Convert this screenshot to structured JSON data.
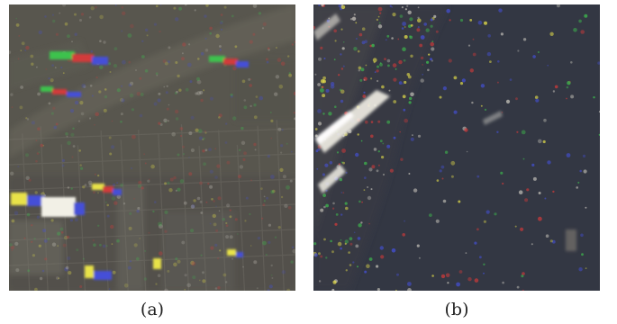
{
  "panels": [
    {
      "id": "a",
      "caption": "(a)",
      "scene": "urban-aerial",
      "background_color": "#58564e"
    },
    {
      "id": "b",
      "caption": "(b)",
      "scene": "dark-water-coast",
      "background_color": "#333743"
    }
  ],
  "colors": {
    "page_background": "#ffffff",
    "caption_text": "#222222",
    "speckle_red": "#d23a3a",
    "speckle_green": "#3ec24e",
    "speckle_blue": "#4450d8",
    "highlight_white": "#f2f0e6",
    "highlight_yellow": "#e8e24a"
  }
}
